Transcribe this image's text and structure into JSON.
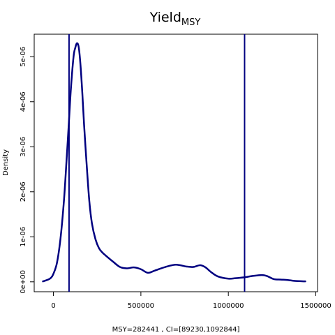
{
  "chart_data": {
    "type": "line",
    "title": "Yield",
    "title_subscript": "MSY",
    "xlabel": "MSY=282441 , CI=[89230,1092844]",
    "ylabel": "Density",
    "xlim": [
      -110000,
      1510000
    ],
    "ylim": [
      -2.2e-07,
      5.5e-06
    ],
    "x_ticks": [
      {
        "value": 0,
        "label": "0"
      },
      {
        "value": 500000,
        "label": "500000"
      },
      {
        "value": 1000000,
        "label": "1000000"
      },
      {
        "value": 1500000,
        "label": "1500000"
      }
    ],
    "y_ticks": [
      {
        "value": 0,
        "label": "0e+00"
      },
      {
        "value": 1e-06,
        "label": "1e-06"
      },
      {
        "value": 2e-06,
        "label": "2e-06"
      },
      {
        "value": 3e-06,
        "label": "3e-06"
      },
      {
        "value": 4e-06,
        "label": "4e-06"
      },
      {
        "value": 5e-06,
        "label": "5e-06"
      }
    ],
    "vlines": [
      89230,
      1092844
    ],
    "line_color": "#000080",
    "series": [
      {
        "x": [
          -60000,
          -20000,
          0,
          20000,
          40000,
          60000,
          75000,
          89230,
          100000,
          115000,
          125000,
          135000,
          145000,
          155000,
          165000,
          175000,
          190000,
          205000,
          220000,
          240000,
          260000,
          280000,
          300000,
          340000,
          380000,
          420000,
          460000,
          500000,
          540000,
          580000,
          640000,
          700000,
          760000,
          800000,
          840000,
          870000,
          900000,
          940000,
          1000000,
          1040000,
          1090000,
          1140000,
          1190000,
          1220000,
          1260000,
          1300000,
          1340000,
          1380000,
          1440000
        ],
        "y": [
          1e-08,
          7e-08,
          1.8e-07,
          4.2e-07,
          9.5e-07,
          1.8e-06,
          2.7e-06,
          3.6e-06,
          4.3e-06,
          5e-06,
          5.2e-06,
          5.3e-06,
          5.2e-06,
          4.8e-06,
          4.2e-06,
          3.5e-06,
          2.6e-06,
          1.8e-06,
          1.3e-06,
          9.5e-07,
          7.5e-07,
          6.5e-07,
          5.8e-07,
          4.5e-07,
          3.3e-07,
          3e-07,
          3.2e-07,
          2.8e-07,
          2e-07,
          2.5e-07,
          3.3e-07,
          3.8e-07,
          3.4e-07,
          3.3e-07,
          3.7e-07,
          3.2e-07,
          2.2e-07,
          1.2e-07,
          7e-08,
          8e-08,
          1e-07,
          1.3e-07,
          1.5e-07,
          1.3e-07,
          6e-08,
          5e-08,
          4e-08,
          2e-08,
          1e-08
        ]
      }
    ]
  }
}
